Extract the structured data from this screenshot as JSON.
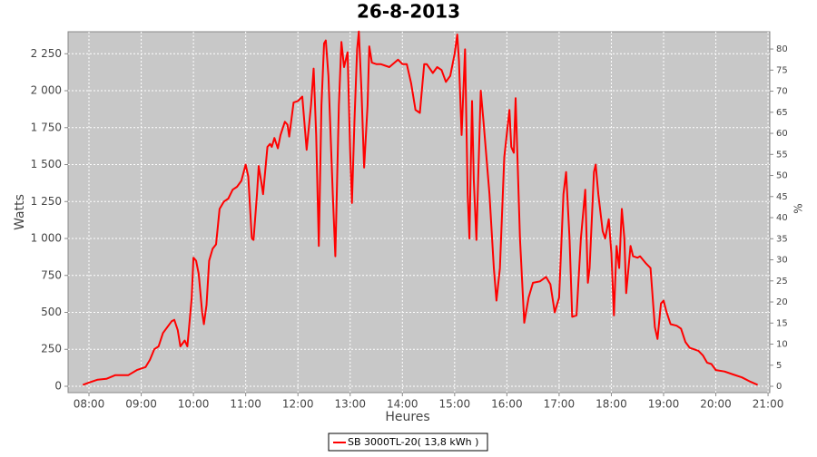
{
  "chart_data": {
    "type": "line",
    "title": "26-8-2013",
    "x_label": "Heures",
    "y_label": "Watts",
    "y2_label": "%",
    "x": [
      "07:53",
      "08:00",
      "08:10",
      "08:20",
      "08:30",
      "08:45",
      "08:55",
      "09:05",
      "09:10",
      "09:15",
      "09:20",
      "09:25",
      "09:30",
      "09:35",
      "09:38",
      "09:42",
      "09:45",
      "09:50",
      "09:53",
      "09:58",
      "10:00",
      "10:03",
      "10:06",
      "10:10",
      "10:12",
      "10:15",
      "10:18",
      "10:22",
      "10:26",
      "10:30",
      "10:35",
      "10:40",
      "10:45",
      "10:50",
      "10:55",
      "11:00",
      "11:03",
      "11:07",
      "11:09",
      "11:13",
      "11:15",
      "11:18",
      "11:20",
      "11:25",
      "11:28",
      "11:30",
      "11:33",
      "11:37",
      "11:40",
      "11:45",
      "11:48",
      "11:50",
      "11:55",
      "12:00",
      "12:05",
      "12:10",
      "12:15",
      "12:18",
      "12:21",
      "12:24",
      "12:27",
      "12:30",
      "12:32",
      "12:35",
      "12:40",
      "12:43",
      "12:47",
      "12:50",
      "12:53",
      "12:57",
      "13:00",
      "13:02",
      "13:05",
      "13:08",
      "13:10",
      "13:13",
      "13:16",
      "13:20",
      "13:22",
      "13:25",
      "13:30",
      "13:35",
      "13:45",
      "13:55",
      "14:00",
      "14:05",
      "14:10",
      "14:15",
      "14:20",
      "14:25",
      "14:28",
      "14:35",
      "14:40",
      "14:45",
      "14:50",
      "14:55",
      "15:00",
      "15:03",
      "15:05",
      "15:08",
      "15:12",
      "15:15",
      "15:17",
      "15:20",
      "15:22",
      "15:25",
      "15:30",
      "15:33",
      "15:40",
      "15:45",
      "15:48",
      "15:52",
      "15:57",
      "16:03",
      "16:05",
      "16:08",
      "16:10",
      "16:15",
      "16:20",
      "16:25",
      "16:30",
      "16:38",
      "16:45",
      "16:50",
      "16:55",
      "17:00",
      "17:05",
      "17:08",
      "17:12",
      "17:15",
      "17:20",
      "17:25",
      "17:30",
      "17:33",
      "17:35",
      "17:40",
      "17:42",
      "17:45",
      "17:50",
      "17:53",
      "17:57",
      "18:00",
      "18:03",
      "18:06",
      "18:09",
      "18:12",
      "18:15",
      "18:17",
      "18:22",
      "18:25",
      "18:30",
      "18:33",
      "18:40",
      "18:45",
      "18:50",
      "18:53",
      "18:57",
      "19:00",
      "19:03",
      "19:08",
      "19:15",
      "19:20",
      "19:25",
      "19:30",
      "19:40",
      "19:45",
      "19:50",
      "19:55",
      "20:00",
      "20:10",
      "20:20",
      "20:30",
      "20:40",
      "20:48"
    ],
    "series": [
      {
        "name": "SB 3000TL-20( 13,8 kWh )",
        "color": "#ff0000",
        "values": [
          10,
          25,
          45,
          50,
          75,
          75,
          110,
          130,
          180,
          250,
          270,
          360,
          400,
          440,
          450,
          380,
          270,
          310,
          270,
          600,
          870,
          850,
          760,
          500,
          420,
          550,
          850,
          930,
          960,
          1200,
          1250,
          1270,
          1330,
          1350,
          1390,
          1500,
          1420,
          1000,
          990,
          1300,
          1490,
          1380,
          1300,
          1620,
          1640,
          1620,
          1680,
          1610,
          1700,
          1790,
          1770,
          1690,
          1920,
          1930,
          1960,
          1600,
          1900,
          2150,
          1700,
          950,
          1900,
          2320,
          2340,
          2100,
          1300,
          880,
          1900,
          2330,
          2160,
          2260,
          1600,
          1240,
          1800,
          2280,
          2400,
          2000,
          1480,
          1900,
          2300,
          2190,
          2180,
          2180,
          2160,
          2210,
          2180,
          2180,
          2050,
          1870,
          1850,
          2180,
          2180,
          2120,
          2160,
          2140,
          2060,
          2100,
          2250,
          2380,
          2200,
          1700,
          2280,
          1300,
          1000,
          1930,
          1400,
          990,
          2000,
          1800,
          1300,
          800,
          580,
          800,
          1550,
          1870,
          1620,
          1580,
          1950,
          1000,
          430,
          600,
          700,
          710,
          740,
          690,
          500,
          600,
          1300,
          1450,
          1000,
          470,
          480,
          1000,
          1330,
          700,
          800,
          1450,
          1500,
          1300,
          1050,
          1000,
          1130,
          900,
          480,
          950,
          800,
          1200,
          1000,
          630,
          950,
          880,
          870,
          880,
          830,
          800,
          400,
          320,
          560,
          580,
          510,
          420,
          410,
          390,
          300,
          260,
          240,
          210,
          160,
          150,
          110,
          100,
          80,
          60,
          30,
          10
        ]
      }
    ],
    "xlim": [
      "07:36",
      "21:02"
    ],
    "xticks": [
      "08:00",
      "09:00",
      "10:00",
      "11:00",
      "12:00",
      "13:00",
      "14:00",
      "15:00",
      "16:00",
      "17:00",
      "18:00",
      "19:00",
      "20:00",
      "21:00"
    ],
    "ylim": [
      -43,
      2399
    ],
    "yticks": [
      0,
      250,
      500,
      750,
      {
        "value": 1000,
        "label": "1 000"
      },
      {
        "value": 1250,
        "label": "1 250"
      },
      {
        "value": 1500,
        "label": "1 500"
      },
      {
        "value": 1750,
        "label": "1 750"
      },
      {
        "value": 2000,
        "label": "2 000"
      },
      {
        "value": 2250,
        "label": "2 250"
      }
    ],
    "y2lim": [
      -1.5,
      84.1
    ],
    "y2ticks": [
      0,
      5,
      10,
      15,
      20,
      25,
      30,
      35,
      40,
      45,
      50,
      55,
      60,
      65,
      70,
      75,
      80
    ],
    "grid": true,
    "legend": "bottom"
  }
}
